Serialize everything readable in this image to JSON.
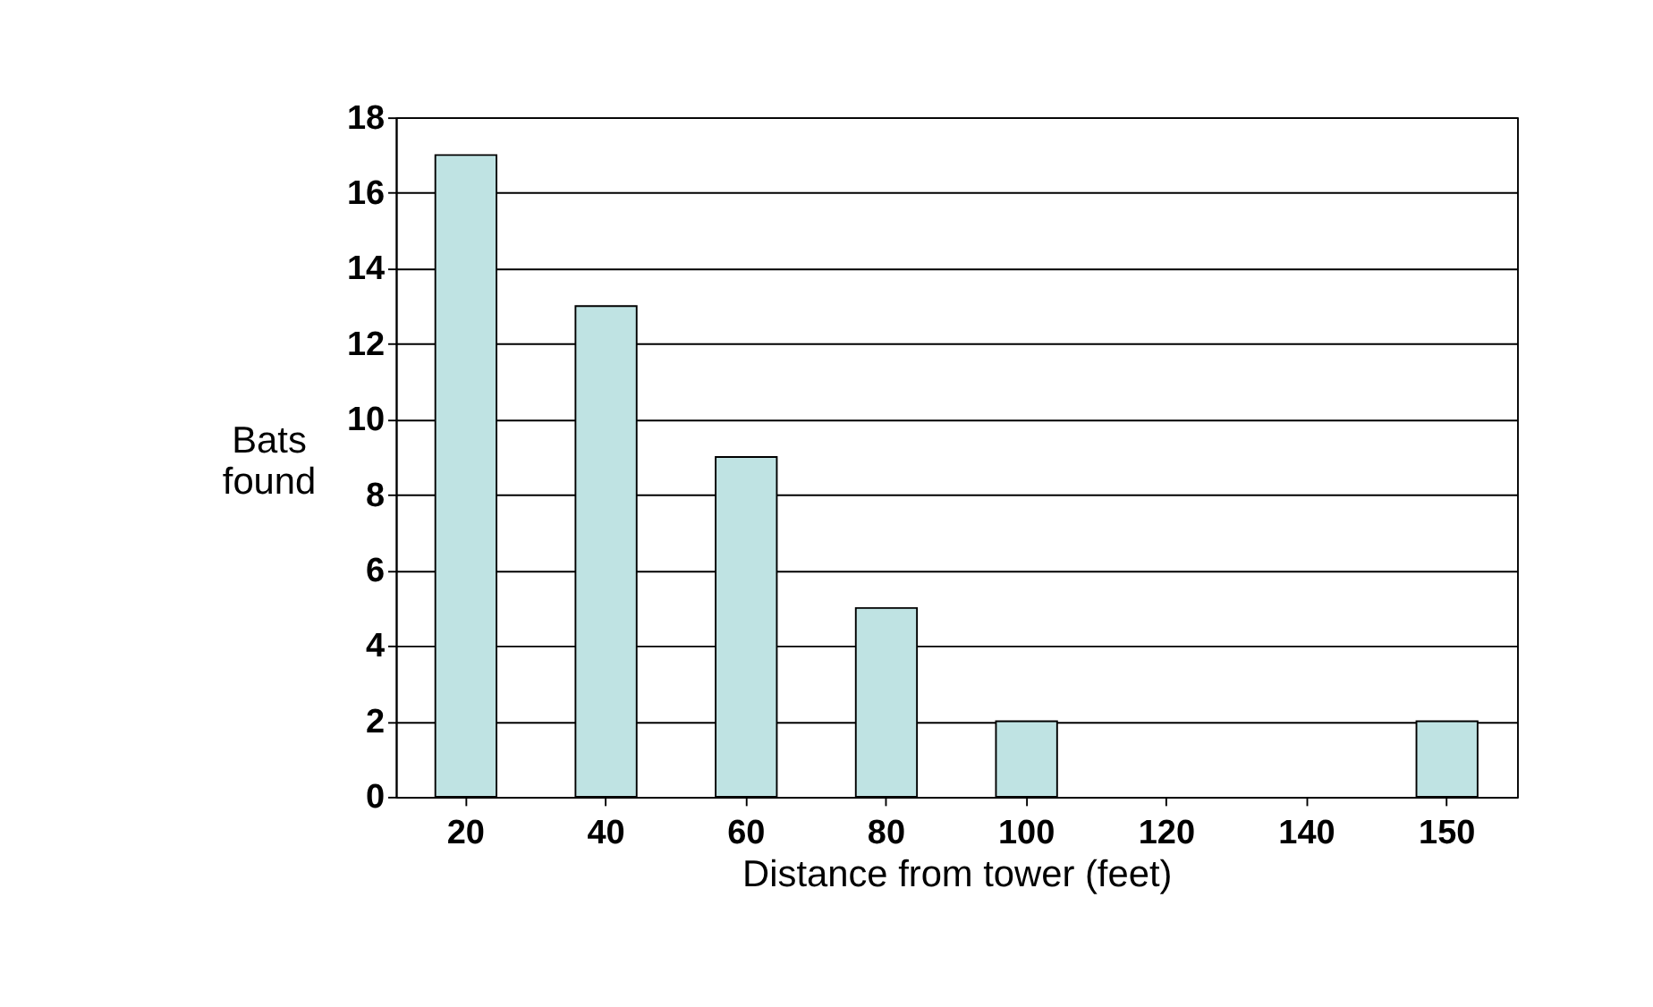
{
  "chart_data": {
    "type": "bar",
    "xlabel": "Distance from tower (feet)",
    "ylabel": "Bats found",
    "categories": [
      "20",
      "40",
      "60",
      "80",
      "100",
      "120",
      "140",
      "150"
    ],
    "values": [
      17,
      13,
      9,
      5,
      2,
      0,
      0,
      2
    ],
    "color": "#bfe3e3",
    "ylim": [
      0,
      18
    ],
    "yticks": [
      0,
      2,
      4,
      6,
      8,
      10,
      12,
      14,
      16,
      18
    ],
    "grid": "y"
  }
}
